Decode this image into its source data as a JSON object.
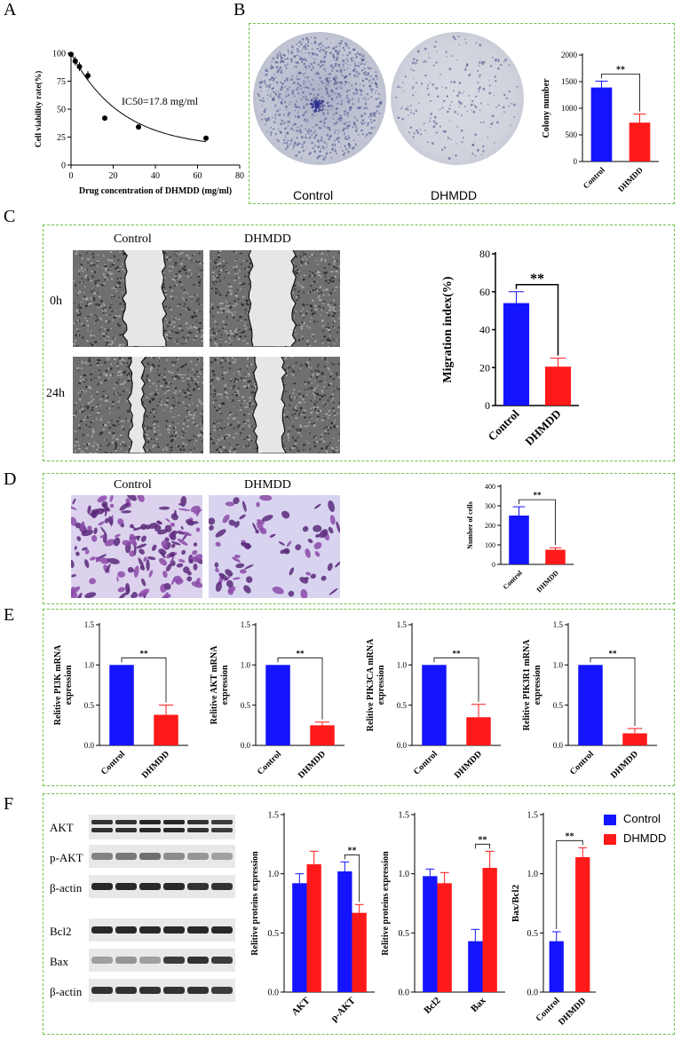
{
  "panels": {
    "A": "A",
    "B": "B",
    "C": "C",
    "D": "D",
    "E": "E",
    "F": "F"
  },
  "colors": {
    "control": "#1414ff",
    "dhmdd": "#ff1a1a",
    "frame": "#6cc24a"
  },
  "panelB": {
    "plate_labels": [
      "Control",
      "DHMDD"
    ]
  },
  "panelC": {
    "col_labels": [
      "Control",
      "DHMDD"
    ],
    "row_labels": [
      "0h",
      "24h"
    ]
  },
  "panelD": {
    "col_labels": [
      "Control",
      "DHMDD"
    ]
  },
  "panelF": {
    "blot_labels": [
      "AKT",
      "p-AKT",
      "β-actin",
      "Bcl2",
      "Bax",
      "β-actin"
    ],
    "legend": [
      {
        "label": "Control",
        "color": "#1414ff"
      },
      {
        "label": "DHMDD",
        "color": "#ff1a1a"
      }
    ]
  },
  "chart_data": [
    {
      "id": "A",
      "type": "scatter",
      "xlabel": "Drug concentration of DHMDD (mg/ml)",
      "ylabel": "Cell viability rate(%)",
      "annotation": "IC50=17.8 mg/ml",
      "xlim": [
        0,
        80
      ],
      "ylim": [
        0,
        100
      ],
      "xticks": [
        0,
        20,
        40,
        60,
        80
      ],
      "yticks": [
        0,
        25,
        50,
        75,
        100
      ],
      "x": [
        0,
        2,
        4,
        8,
        16,
        32,
        64
      ],
      "y": [
        99,
        93,
        88,
        80,
        42,
        34,
        24
      ],
      "fit_curve": true
    },
    {
      "id": "B",
      "type": "bar",
      "ylabel": "Colony number",
      "categories": [
        "Control",
        "DHMDD"
      ],
      "values": [
        1390,
        730
      ],
      "errors": [
        120,
        160
      ],
      "ylim": [
        0,
        2000
      ],
      "yticks": [
        0,
        500,
        1000,
        1500,
        2000
      ],
      "significance": "**"
    },
    {
      "id": "C",
      "type": "bar",
      "ylabel": "Migration index(%)",
      "categories": [
        "Control",
        "DHMDD"
      ],
      "values": [
        54,
        20.5
      ],
      "errors": [
        6,
        4.5
      ],
      "ylim": [
        0,
        80
      ],
      "yticks": [
        0,
        20,
        40,
        60,
        80
      ],
      "significance": "**"
    },
    {
      "id": "D",
      "type": "bar",
      "ylabel": "Number of cells",
      "categories": [
        "Control",
        "DHMDD"
      ],
      "values": [
        250,
        75
      ],
      "errors": [
        45,
        10
      ],
      "ylim": [
        0,
        400
      ],
      "yticks": [
        0,
        100,
        200,
        300,
        400
      ],
      "significance": "**"
    },
    {
      "id": "E1",
      "type": "bar",
      "ylabel": "Relitive PI3K mRNA expression",
      "categories": [
        "Control",
        "DHMDD"
      ],
      "values": [
        1.0,
        0.38
      ],
      "errors": [
        0,
        0.12
      ],
      "ylim": [
        0,
        1.5
      ],
      "yticks": [
        0.0,
        0.5,
        1.0,
        1.5
      ],
      "significance": "**"
    },
    {
      "id": "E2",
      "type": "bar",
      "ylabel": "Relitive AKT mRNA expression",
      "categories": [
        "Control",
        "DHMDD"
      ],
      "values": [
        1.0,
        0.25
      ],
      "errors": [
        0,
        0.04
      ],
      "ylim": [
        0,
        1.5
      ],
      "yticks": [
        0.0,
        0.5,
        1.0,
        1.5
      ],
      "significance": "**"
    },
    {
      "id": "E3",
      "type": "bar",
      "ylabel": "Relitive PIK3CA mRNA expression",
      "categories": [
        "Control",
        "DHMDD"
      ],
      "values": [
        1.0,
        0.35
      ],
      "errors": [
        0,
        0.16
      ],
      "ylim": [
        0,
        1.5
      ],
      "yticks": [
        0.0,
        0.5,
        1.0,
        1.5
      ],
      "significance": "**"
    },
    {
      "id": "E4",
      "type": "bar",
      "ylabel": "Relitive PIK3R1 mRNA expression",
      "categories": [
        "Control",
        "DHMDD"
      ],
      "values": [
        1.0,
        0.15
      ],
      "errors": [
        0,
        0.06
      ],
      "ylim": [
        0,
        1.5
      ],
      "yticks": [
        0.0,
        0.5,
        1.0,
        1.5
      ],
      "significance": "**"
    },
    {
      "id": "F1",
      "type": "bar",
      "ylabel": "Relitive proteins expression",
      "categories": [
        "AKT",
        "p-AKT"
      ],
      "series": [
        {
          "name": "Control",
          "values": [
            0.92,
            1.02
          ],
          "errors": [
            0.08,
            0.08
          ]
        },
        {
          "name": "DHMDD",
          "values": [
            1.08,
            0.67
          ],
          "errors": [
            0.11,
            0.07
          ]
        }
      ],
      "ylim": [
        0,
        1.5
      ],
      "yticks": [
        0.0,
        0.5,
        1.0,
        1.5
      ],
      "significance": "**"
    },
    {
      "id": "F2",
      "type": "bar",
      "ylabel": "Relitive proteins expression",
      "categories": [
        "Bcl2",
        "Bax"
      ],
      "series": [
        {
          "name": "Control",
          "values": [
            0.98,
            0.43
          ],
          "errors": [
            0.06,
            0.1
          ]
        },
        {
          "name": "DHMDD",
          "values": [
            0.92,
            1.05
          ],
          "errors": [
            0.09,
            0.14
          ]
        }
      ],
      "ylim": [
        0,
        1.5
      ],
      "yticks": [
        0.0,
        0.5,
        1.0,
        1.5
      ],
      "significance": "**"
    },
    {
      "id": "F3",
      "type": "bar",
      "ylabel": "Bax/Bcl2",
      "categories": [
        "Control",
        "DHMDD"
      ],
      "values": [
        0.43,
        1.14
      ],
      "errors": [
        0.08,
        0.08
      ],
      "ylim": [
        0,
        1.5
      ],
      "yticks": [
        0.0,
        0.5,
        1.0,
        1.5
      ],
      "significance": "**"
    }
  ]
}
